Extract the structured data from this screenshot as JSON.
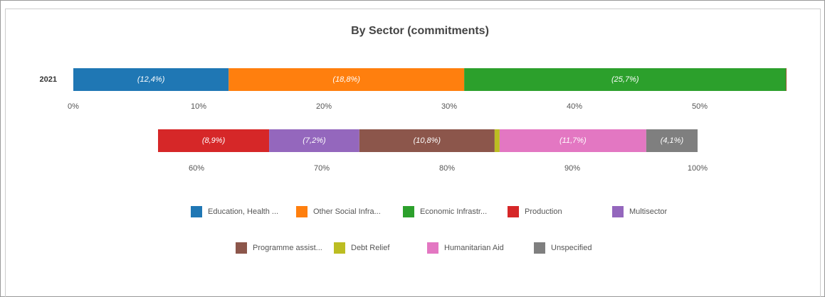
{
  "chart_data": {
    "type": "stacked_bar_horizontal",
    "title": "By Sector (commitments)",
    "categories": [
      "2021"
    ],
    "series": [
      {
        "name": "Education, Health ...",
        "color": "#1f77b4",
        "values": [
          12.4
        ],
        "value_labels": [
          "(12,4%)"
        ]
      },
      {
        "name": "Other Social Infra...",
        "color": "#ff7f0e",
        "values": [
          18.8
        ],
        "value_labels": [
          "(18,8%)"
        ]
      },
      {
        "name": "Economic Infrastr...",
        "color": "#2ca02c",
        "values": [
          25.7
        ],
        "value_labels": [
          "(25,7%)"
        ]
      },
      {
        "name": "Production",
        "color": "#d62728",
        "values": [
          8.9
        ],
        "value_labels": [
          "(8,9%)"
        ]
      },
      {
        "name": "Multisector",
        "color": "#9467bd",
        "values": [
          7.2
        ],
        "value_labels": [
          "(7,2%)"
        ]
      },
      {
        "name": "Programme assist...",
        "color": "#8c564b",
        "values": [
          10.8
        ],
        "value_labels": [
          "(10,8%)"
        ]
      },
      {
        "name": "Debt Relief",
        "color": "#bcbd22",
        "values": [
          0.4
        ]
      },
      {
        "name": "Humanitarian Aid",
        "color": "#e377c2",
        "values": [
          11.7
        ],
        "value_labels": [
          "(11,7%)"
        ]
      },
      {
        "name": "Unspecified",
        "color": "#7f7f7f",
        "values": [
          4.1
        ],
        "value_labels": [
          "(4,1%)"
        ]
      }
    ],
    "xlim": [
      0,
      100
    ],
    "xticks": [
      {
        "value": 0,
        "label": "0%"
      },
      {
        "value": 10,
        "label": "10%"
      },
      {
        "value": 20,
        "label": "20%"
      },
      {
        "value": 30,
        "label": "30%"
      },
      {
        "value": 40,
        "label": "40%"
      },
      {
        "value": 50,
        "label": "50%"
      },
      {
        "value": 60,
        "label": "60%"
      },
      {
        "value": 70,
        "label": "70%"
      },
      {
        "value": 80,
        "label": "80%"
      },
      {
        "value": 90,
        "label": "90%"
      },
      {
        "value": 100,
        "label": "100%"
      }
    ],
    "legend": "bottom"
  }
}
